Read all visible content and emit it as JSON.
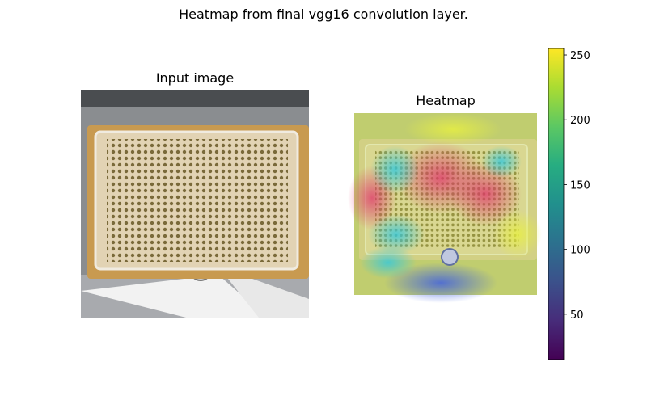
{
  "figure": {
    "suptitle": "Heatmap from final vgg16 convolution layer."
  },
  "chart_data": [
    {
      "type": "image",
      "title": "Input image",
      "content": "photo of a microplate with a grid of wells on an instrument stage",
      "axes": "off"
    },
    {
      "type": "heatmap",
      "title": "Heatmap",
      "overlay": "heatmap blended over the input image",
      "colormap": "viridis",
      "colorbar": {
        "range": [
          15,
          255
        ],
        "ticks": [
          50,
          100,
          150,
          200,
          250
        ],
        "colors": [
          "#440154",
          "#472c7a",
          "#3b518b",
          "#2c718e",
          "#21908d",
          "#27ad81",
          "#5cc863",
          "#aadc32",
          "#fde725"
        ]
      }
    }
  ]
}
